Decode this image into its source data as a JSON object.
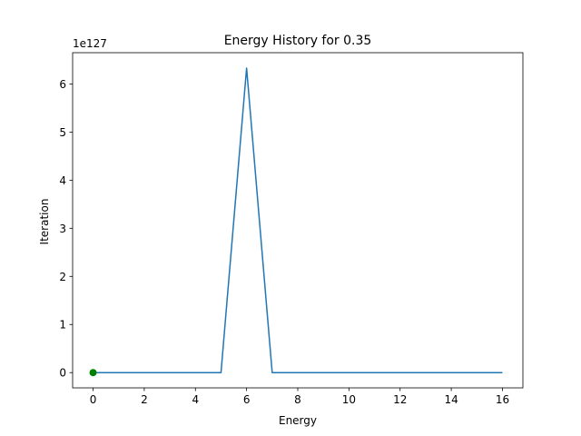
{
  "chart_data": {
    "type": "line",
    "title": "Energy History for 0.35",
    "xlabel": "Energy",
    "ylabel": "Iteration",
    "y_offset_label": "1e127",
    "xlim": [
      -0.8,
      16.8
    ],
    "ylim": [
      -0.317,
      6.65
    ],
    "x_ticks": [
      0,
      2,
      4,
      6,
      8,
      10,
      12,
      14,
      16
    ],
    "x_tick_labels": [
      "0",
      "2",
      "4",
      "6",
      "8",
      "10",
      "12",
      "14",
      "16"
    ],
    "y_ticks": [
      0,
      1,
      2,
      3,
      4,
      5,
      6
    ],
    "y_tick_labels": [
      "0",
      "1",
      "2",
      "3",
      "4",
      "5",
      "6"
    ],
    "grid": false,
    "series": [
      {
        "color": "#1f77b4",
        "x": [
          0,
          1,
          2,
          3,
          4,
          5,
          6,
          7,
          8,
          9,
          10,
          11,
          12,
          13,
          14,
          15,
          16
        ],
        "y": [
          0,
          0,
          0,
          0,
          0,
          0,
          6.33,
          0,
          0,
          0,
          0,
          0,
          0,
          0,
          0,
          0,
          0
        ]
      }
    ],
    "markers": [
      {
        "x": 0,
        "y": 0,
        "color": "#008000"
      }
    ]
  }
}
